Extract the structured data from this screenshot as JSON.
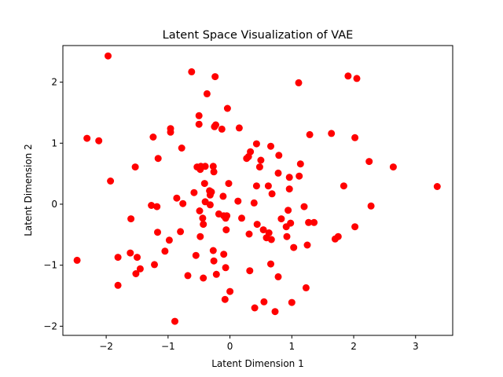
{
  "chart_data": {
    "type": "scatter",
    "title": "Latent Space Visualization of VAE",
    "xlabel": "Latent Dimension 1",
    "ylabel": "Latent Dimension 2",
    "xlim": [
      -2.7,
      3.6
    ],
    "ylim": [
      -2.15,
      2.6
    ],
    "xticks": [
      -2,
      -1,
      0,
      1,
      2,
      3
    ],
    "yticks": [
      -2,
      -1,
      0,
      1,
      2
    ],
    "grid": false,
    "legend": "none",
    "marker_color": "#ff0000",
    "points": [
      [
        -1.97,
        2.43
      ],
      [
        -2.31,
        1.08
      ],
      [
        -2.12,
        1.04
      ],
      [
        -1.93,
        0.38
      ],
      [
        -2.47,
        -0.92
      ],
      [
        -1.81,
        -0.87
      ],
      [
        -1.81,
        -1.33
      ],
      [
        -1.6,
        -0.24
      ],
      [
        -1.61,
        -0.8
      ],
      [
        -1.53,
        0.61
      ],
      [
        -1.5,
        -0.87
      ],
      [
        -1.52,
        -1.14
      ],
      [
        -1.45,
        -1.06
      ],
      [
        -1.27,
        -0.02
      ],
      [
        -1.22,
        -0.99
      ],
      [
        -1.24,
        1.1
      ],
      [
        -1.18,
        -0.04
      ],
      [
        -1.16,
        0.75
      ],
      [
        -1.17,
        -0.46
      ],
      [
        -1.05,
        -0.77
      ],
      [
        -0.98,
        -0.59
      ],
      [
        -0.96,
        1.18
      ],
      [
        -0.96,
        1.24
      ],
      [
        -0.89,
        -1.92
      ],
      [
        -0.86,
        0.1
      ],
      [
        -0.78,
        0.92
      ],
      [
        -0.8,
        -0.45
      ],
      [
        -0.76,
        0.01
      ],
      [
        -0.68,
        -1.17
      ],
      [
        -0.62,
        2.17
      ],
      [
        -0.58,
        0.19
      ],
      [
        -0.53,
        0.61
      ],
      [
        -0.55,
        -0.84
      ],
      [
        -0.5,
        1.45
      ],
      [
        -0.5,
        1.31
      ],
      [
        -0.49,
        -0.11
      ],
      [
        -0.48,
        0.57
      ],
      [
        -0.47,
        0.62
      ],
      [
        -0.48,
        -0.53
      ],
      [
        -0.44,
        -0.23
      ],
      [
        -0.4,
        0.62
      ],
      [
        -0.4,
        0.04
      ],
      [
        -0.41,
        0.34
      ],
      [
        -0.43,
        -0.33
      ],
      [
        -0.43,
        -1.21
      ],
      [
        -0.37,
        1.81
      ],
      [
        -0.33,
        0.22
      ],
      [
        -0.32,
        0.15
      ],
      [
        -0.32,
        -0.01
      ],
      [
        -0.3,
        0.2
      ],
      [
        -0.27,
        0.62
      ],
      [
        -0.26,
        0.53
      ],
      [
        -0.25,
        1.27
      ],
      [
        -0.23,
        1.3
      ],
      [
        -0.22,
        -1.15
      ],
      [
        -0.27,
        -0.76
      ],
      [
        -0.26,
        -0.93
      ],
      [
        -0.24,
        2.09
      ],
      [
        -0.18,
        -0.16
      ],
      [
        -0.13,
        1.23
      ],
      [
        -0.11,
        0.13
      ],
      [
        -0.1,
        -0.19
      ],
      [
        -0.1,
        -0.82
      ],
      [
        -0.07,
        -0.23
      ],
      [
        -0.06,
        -0.42
      ],
      [
        -0.07,
        -1.04
      ],
      [
        -0.08,
        -1.56
      ],
      [
        -0.04,
        1.57
      ],
      [
        -0.05,
        -0.19
      ],
      [
        -0.02,
        0.34
      ],
      [
        0.0,
        -1.43
      ],
      [
        0.13,
        0.05
      ],
      [
        0.15,
        1.25
      ],
      [
        0.19,
        -0.23
      ],
      [
        0.27,
        0.75
      ],
      [
        0.3,
        0.78
      ],
      [
        0.33,
        0.86
      ],
      [
        0.31,
        -0.49
      ],
      [
        0.32,
        -1.09
      ],
      [
        0.39,
        0.02
      ],
      [
        0.43,
        0.99
      ],
      [
        0.43,
        0.3
      ],
      [
        0.44,
        -0.33
      ],
      [
        0.4,
        -1.7
      ],
      [
        0.48,
        0.61
      ],
      [
        0.5,
        0.72
      ],
      [
        0.54,
        -0.42
      ],
      [
        0.55,
        -1.6
      ],
      [
        0.59,
        -0.55
      ],
      [
        0.62,
        0.3
      ],
      [
        0.63,
        -0.47
      ],
      [
        0.66,
        0.95
      ],
      [
        0.68,
        0.17
      ],
      [
        0.66,
        -0.98
      ],
      [
        0.67,
        -0.58
      ],
      [
        0.73,
        -1.76
      ],
      [
        0.78,
        0.51
      ],
      [
        0.79,
        0.8
      ],
      [
        0.78,
        -1.19
      ],
      [
        0.83,
        -0.24
      ],
      [
        0.91,
        -0.37
      ],
      [
        0.92,
        -0.53
      ],
      [
        0.94,
        -0.1
      ],
      [
        0.96,
        0.44
      ],
      [
        0.96,
        0.25
      ],
      [
        0.98,
        -0.31
      ],
      [
        1.0,
        -1.61
      ],
      [
        1.03,
        -0.71
      ],
      [
        1.11,
        1.99
      ],
      [
        1.12,
        0.46
      ],
      [
        1.14,
        0.66
      ],
      [
        1.2,
        -0.04
      ],
      [
        1.23,
        -1.37
      ],
      [
        1.25,
        -0.67
      ],
      [
        1.27,
        -0.3
      ],
      [
        1.29,
        1.14
      ],
      [
        1.36,
        -0.3
      ],
      [
        1.64,
        1.16
      ],
      [
        1.7,
        -0.57
      ],
      [
        1.75,
        -0.53
      ],
      [
        1.84,
        0.3
      ],
      [
        1.91,
        2.1
      ],
      [
        2.02,
        1.09
      ],
      [
        2.02,
        -0.37
      ],
      [
        2.05,
        2.06
      ],
      [
        2.25,
        0.7
      ],
      [
        2.28,
        -0.03
      ],
      [
        2.64,
        0.61
      ],
      [
        3.35,
        0.29
      ]
    ]
  }
}
